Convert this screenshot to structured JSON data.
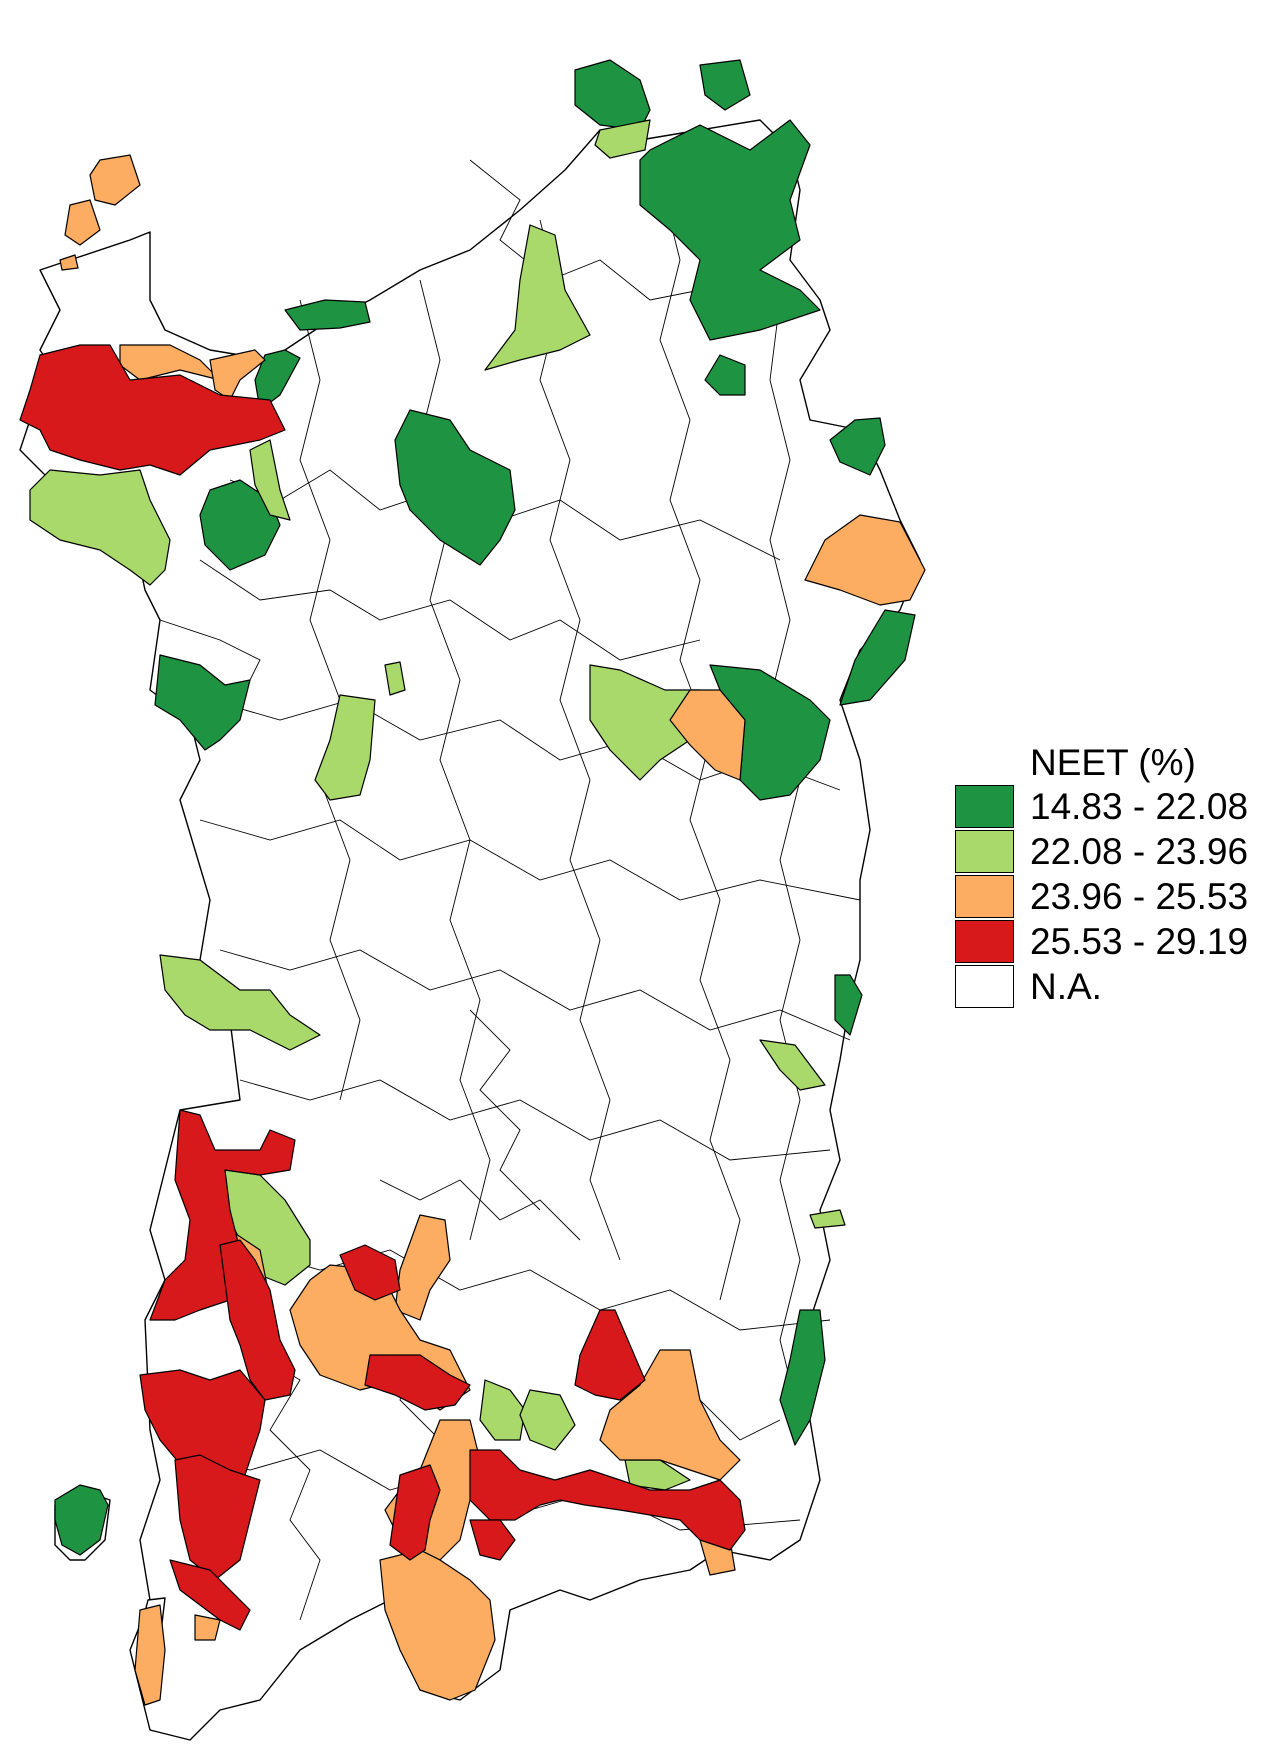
{
  "legend": {
    "title": "NEET (%)",
    "items": [
      {
        "label": "14.83 - 22.08",
        "color": "#1e9442"
      },
      {
        "label": "22.08 - 23.96",
        "color": "#a8d96a"
      },
      {
        "label": "23.96 - 25.53",
        "color": "#fcad62"
      },
      {
        "label": "25.53 - 29.19",
        "color": "#d7191c"
      },
      {
        "label": "N.A.",
        "color": "#ffffff"
      }
    ]
  }
}
